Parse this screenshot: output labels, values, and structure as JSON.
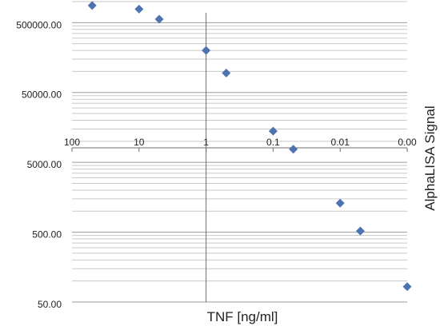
{
  "chart_data": {
    "type": "scatter",
    "xlabel": "TNF [ng/ml]",
    "ylabel": "AlphaLISA Signal",
    "x_scale": "log",
    "x_reversed": true,
    "x_range": [
      100,
      0.001
    ],
    "x_ticks": [
      100,
      10,
      1,
      0.1,
      0.01,
      0.001
    ],
    "x_tick_labels": [
      "100",
      "10",
      "1",
      "0.1",
      "0.01",
      "0.00"
    ],
    "y_scale": "log",
    "y_range": [
      50,
      1000000
    ],
    "y_ticks": [
      50,
      500,
      5000,
      50000,
      500000
    ],
    "y_tick_labels": [
      "50.00",
      "500.00",
      "5000.00",
      "50000.00",
      "500000.00"
    ],
    "grid": "horizontal major and minor",
    "marker": "diamond",
    "marker_color": "#4f73b1",
    "points": [
      {
        "x": 50,
        "y": 880000
      },
      {
        "x": 10,
        "y": 780000
      },
      {
        "x": 5,
        "y": 560000
      },
      {
        "x": 1,
        "y": 200000
      },
      {
        "x": 0.5,
        "y": 95000
      },
      {
        "x": 0.1,
        "y": 14000
      },
      {
        "x": 0.05,
        "y": 7700
      },
      {
        "x": 0.01,
        "y": 1300
      },
      {
        "x": 0.005,
        "y": 520
      },
      {
        "x": 0.001,
        "y": 83
      }
    ]
  }
}
